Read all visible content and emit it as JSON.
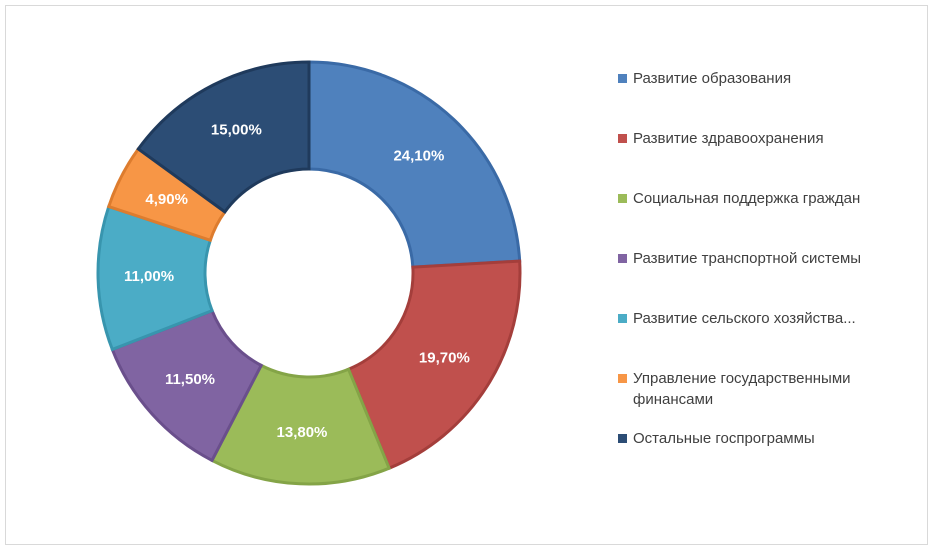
{
  "chart_data": {
    "type": "pie",
    "donut": true,
    "series": [
      {
        "name": "Развитие образования",
        "value": 24.1,
        "label": "24,10%",
        "color": "#4f81bd",
        "stroke": "#3a6aa6"
      },
      {
        "name": "Развитие здравоохранения",
        "value": 19.7,
        "label": "19,70%",
        "color": "#c0504d",
        "stroke": "#a43e3b"
      },
      {
        "name": "Социальная поддержка граждан",
        "value": 13.8,
        "label": "13,80%",
        "color": "#9bbb59",
        "stroke": "#84a447"
      },
      {
        "name": "Развитие транспортной системы",
        "value": 11.5,
        "label": "11,50%",
        "color": "#8064a2",
        "stroke": "#6a4f8c"
      },
      {
        "name": "Развитие сельского хозяйства...",
        "value": 11.0,
        "label": "11,00%",
        "color": "#4bacc6",
        "stroke": "#3895ae"
      },
      {
        "name": "Управление государственными финансами",
        "value": 4.9,
        "label": "4,90%",
        "color": "#f79646",
        "stroke": "#dd7c2e"
      },
      {
        "name": "Остальные госпрограммы",
        "value": 15.0,
        "label": "15,00%",
        "color": "#2c4d75",
        "stroke": "#1f3a5c"
      }
    ],
    "legend_position": "right"
  }
}
